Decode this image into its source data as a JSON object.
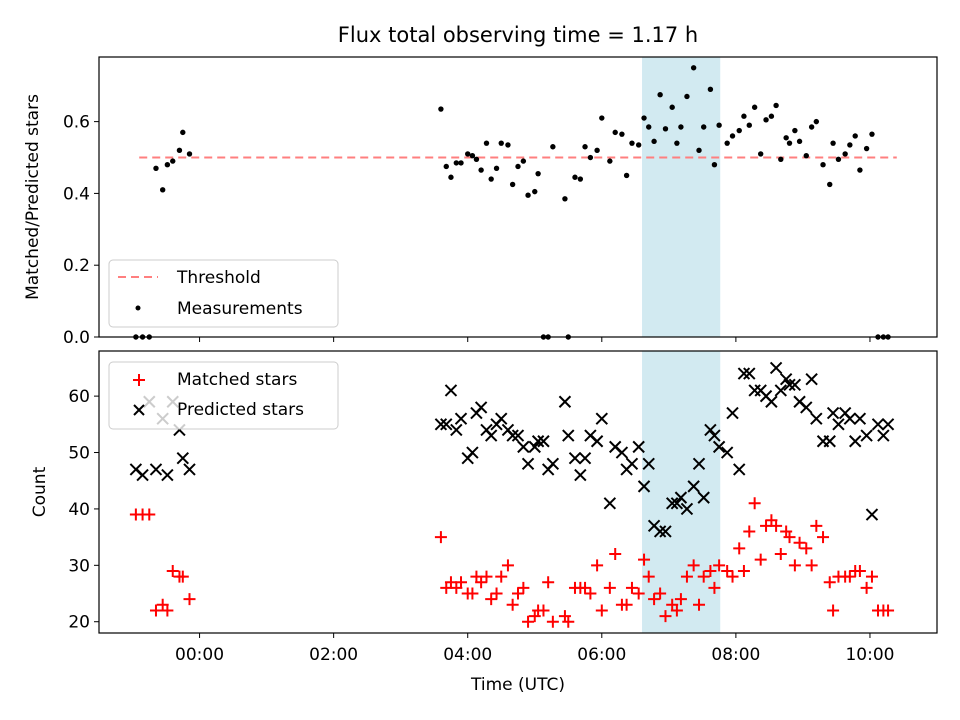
{
  "figure": {
    "title": "Flux total observing time = 1.17 h",
    "xlabel": "Time (UTC)",
    "xticks": [
      "00:00",
      "02:00",
      "04:00",
      "06:00",
      "08:00",
      "10:00"
    ],
    "highlight_band": {
      "start": "06:36",
      "end": "07:46",
      "color": "#add8e6"
    }
  },
  "chart_data": [
    {
      "type": "scatter",
      "panel": "top",
      "ylabel": "Matched/Predicted stars",
      "ylim": [
        0,
        0.78
      ],
      "yticks": [
        "0.0",
        "0.2",
        "0.4",
        "0.6"
      ],
      "xlim_hours": [
        -1.5,
        11.0
      ],
      "legend": {
        "placement": "lower-left",
        "entries": [
          "Threshold",
          "Measurements"
        ]
      },
      "series": [
        {
          "name": "Threshold",
          "kind": "dashed-line",
          "color": "#ff7f7f",
          "x": [
            -0.9,
            10.4
          ],
          "y": [
            0.5,
            0.5
          ]
        },
        {
          "name": "Measurements",
          "kind": "points",
          "color": "#000000",
          "x": [
            -0.95,
            -0.85,
            -0.75,
            -0.65,
            -0.55,
            -0.48,
            -0.4,
            -0.3,
            -0.25,
            -0.15,
            3.6,
            3.68,
            3.75,
            3.83,
            3.9,
            4.0,
            4.07,
            4.13,
            4.2,
            4.28,
            4.35,
            4.43,
            4.5,
            4.6,
            4.67,
            4.75,
            4.83,
            4.9,
            5.0,
            5.05,
            5.13,
            5.2,
            5.27,
            5.45,
            5.5,
            5.6,
            5.68,
            5.75,
            5.83,
            5.93,
            6.0,
            6.12,
            6.2,
            6.3,
            6.37,
            6.45,
            6.55,
            6.63,
            6.7,
            6.78,
            6.87,
            6.95,
            7.05,
            7.12,
            7.18,
            7.27,
            7.37,
            7.45,
            7.52,
            7.62,
            7.68,
            7.75,
            7.87,
            7.95,
            8.05,
            8.12,
            8.2,
            8.28,
            8.37,
            8.45,
            8.53,
            8.6,
            8.67,
            8.75,
            8.8,
            8.88,
            8.95,
            9.05,
            9.13,
            9.2,
            9.3,
            9.4,
            9.45,
            9.53,
            9.63,
            9.7,
            9.78,
            9.85,
            9.95,
            10.03,
            10.12,
            10.2,
            10.27
          ],
          "y": [
            0.0,
            0.0,
            0.0,
            0.47,
            0.41,
            0.48,
            0.49,
            0.52,
            0.57,
            0.51,
            0.635,
            0.475,
            0.445,
            0.485,
            0.485,
            0.51,
            0.505,
            0.495,
            0.465,
            0.54,
            0.44,
            0.47,
            0.54,
            0.535,
            0.425,
            0.475,
            0.49,
            0.395,
            0.405,
            0.455,
            0.0,
            0.0,
            0.53,
            0.385,
            0.0,
            0.445,
            0.44,
            0.53,
            0.5,
            0.52,
            0.61,
            0.49,
            0.57,
            0.565,
            0.45,
            0.54,
            0.535,
            0.61,
            0.585,
            0.545,
            0.675,
            0.58,
            0.64,
            0.54,
            0.585,
            0.67,
            0.75,
            0.52,
            0.585,
            0.69,
            0.48,
            0.59,
            0.54,
            0.56,
            0.575,
            0.615,
            0.59,
            0.64,
            0.51,
            0.605,
            0.615,
            0.645,
            0.495,
            0.555,
            0.54,
            0.575,
            0.545,
            0.505,
            0.585,
            0.6,
            0.48,
            0.425,
            0.54,
            0.495,
            0.51,
            0.535,
            0.56,
            0.465,
            0.525,
            0.565,
            0.0,
            0.0,
            0.0
          ]
        }
      ]
    },
    {
      "type": "scatter",
      "panel": "bottom",
      "ylabel": "Count",
      "ylim": [
        18,
        68
      ],
      "yticks": [
        "20",
        "30",
        "40",
        "50",
        "60"
      ],
      "xlim_hours": [
        -1.5,
        11.0
      ],
      "legend": {
        "placement": "upper-left",
        "entries": [
          "Matched stars",
          "Predicted stars"
        ]
      },
      "series": [
        {
          "name": "Matched stars",
          "marker": "plus",
          "color": "#ff0000",
          "x": [
            -0.95,
            -0.85,
            -0.75,
            -0.65,
            -0.55,
            -0.48,
            -0.4,
            -0.3,
            -0.25,
            -0.15,
            3.6,
            3.68,
            3.75,
            3.83,
            3.9,
            4.0,
            4.07,
            4.13,
            4.2,
            4.28,
            4.35,
            4.43,
            4.5,
            4.6,
            4.67,
            4.75,
            4.83,
            4.9,
            5.0,
            5.05,
            5.13,
            5.2,
            5.27,
            5.45,
            5.5,
            5.6,
            5.68,
            5.75,
            5.83,
            5.93,
            6.0,
            6.12,
            6.2,
            6.3,
            6.37,
            6.45,
            6.55,
            6.63,
            6.7,
            6.78,
            6.87,
            6.95,
            7.05,
            7.12,
            7.18,
            7.27,
            7.37,
            7.45,
            7.52,
            7.62,
            7.68,
            7.75,
            7.87,
            7.95,
            8.05,
            8.12,
            8.2,
            8.28,
            8.37,
            8.45,
            8.53,
            8.6,
            8.67,
            8.75,
            8.8,
            8.88,
            8.95,
            9.05,
            9.13,
            9.2,
            9.3,
            9.4,
            9.45,
            9.53,
            9.63,
            9.7,
            9.78,
            9.85,
            9.95,
            10.03,
            10.12,
            10.2,
            10.27
          ],
          "y": [
            39,
            39,
            39,
            22,
            23,
            22,
            29,
            28,
            28,
            24,
            35,
            26,
            27,
            26,
            27,
            25,
            25,
            28,
            27,
            28,
            24,
            25,
            28,
            30,
            23,
            25,
            26,
            20,
            21,
            22,
            22,
            27,
            20,
            21,
            20,
            26,
            26,
            26,
            25,
            30,
            22,
            26,
            32,
            23,
            23,
            26,
            25,
            31,
            28,
            24,
            25,
            21,
            23,
            22,
            24,
            28,
            30,
            23,
            28,
            29,
            26,
            30,
            29,
            28,
            33,
            29,
            36,
            41,
            31,
            37,
            38,
            37,
            32,
            36,
            35,
            30,
            34,
            33,
            30,
            37,
            35,
            27,
            22,
            28,
            28,
            28,
            29,
            29,
            26,
            28,
            22,
            22,
            22
          ]
        },
        {
          "name": "Predicted stars",
          "marker": "x",
          "color": "#000000",
          "x": [
            -0.95,
            -0.85,
            -0.75,
            -0.65,
            -0.55,
            -0.48,
            -0.4,
            -0.3,
            -0.25,
            -0.15,
            3.6,
            3.68,
            3.75,
            3.83,
            3.9,
            4.0,
            4.07,
            4.13,
            4.2,
            4.28,
            4.35,
            4.43,
            4.5,
            4.6,
            4.67,
            4.75,
            4.83,
            4.9,
            5.0,
            5.05,
            5.13,
            5.2,
            5.27,
            5.45,
            5.5,
            5.6,
            5.68,
            5.75,
            5.83,
            5.93,
            6.0,
            6.12,
            6.2,
            6.3,
            6.37,
            6.45,
            6.55,
            6.63,
            6.7,
            6.78,
            6.87,
            6.95,
            7.05,
            7.12,
            7.18,
            7.27,
            7.37,
            7.45,
            7.52,
            7.62,
            7.68,
            7.75,
            7.87,
            7.95,
            8.05,
            8.12,
            8.2,
            8.28,
            8.37,
            8.45,
            8.53,
            8.6,
            8.67,
            8.75,
            8.8,
            8.88,
            8.95,
            9.05,
            9.13,
            9.2,
            9.3,
            9.4,
            9.45,
            9.53,
            9.63,
            9.7,
            9.78,
            9.85,
            9.95,
            10.03,
            10.12,
            10.2,
            10.27
          ],
          "y": [
            47,
            46,
            59,
            47,
            56,
            46,
            59,
            54,
            49,
            47,
            55,
            55,
            61,
            54,
            56,
            49,
            50,
            57,
            58,
            54,
            53,
            55,
            56,
            54,
            53,
            53,
            51,
            48,
            51,
            52,
            52,
            47,
            48,
            59,
            53,
            49,
            46,
            49,
            53,
            52,
            56,
            41,
            51,
            50,
            47,
            48,
            51,
            44,
            48,
            37,
            36,
            36,
            41,
            41,
            42,
            40,
            44,
            48,
            42,
            54,
            53,
            51,
            50,
            57,
            47,
            64,
            64,
            61,
            61,
            60,
            59,
            65,
            61,
            63,
            62,
            62,
            59,
            58,
            63,
            56,
            52,
            52,
            57,
            55,
            57,
            56,
            52,
            56,
            53,
            39,
            55,
            53,
            55
          ]
        }
      ]
    }
  ]
}
